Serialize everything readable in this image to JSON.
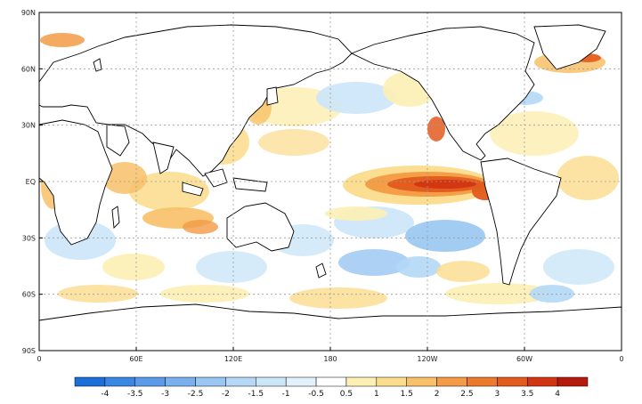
{
  "map": {
    "lat_labels": [
      "90N",
      "60N",
      "30N",
      "EQ",
      "30S",
      "60S",
      "90S"
    ],
    "lon_labels": [
      "0",
      "60E",
      "120E",
      "180",
      "120W",
      "60W",
      "0"
    ]
  },
  "colorbar": {
    "labels": [
      "-4",
      "-3.5",
      "-3",
      "-2.5",
      "-2",
      "-1.5",
      "-1",
      "-0.5",
      "0.5",
      "1",
      "1.5",
      "2",
      "2.5",
      "3",
      "3.5",
      "4"
    ],
    "colors": [
      "#1c6fd8",
      "#3a86e3",
      "#5a9ae8",
      "#7ab0ee",
      "#99c6f2",
      "#b4d8f6",
      "#cce6f9",
      "#e2f1fb",
      "#ffffff",
      "#fdf0b4",
      "#fbdc8c",
      "#f8c068",
      "#f39b45",
      "#eb7a2c",
      "#e25a1e",
      "#d13512",
      "#b51a0c"
    ]
  },
  "colors": {
    "land": "#ffffff",
    "coast": "#000000",
    "grid": "#9a9a9a"
  }
}
